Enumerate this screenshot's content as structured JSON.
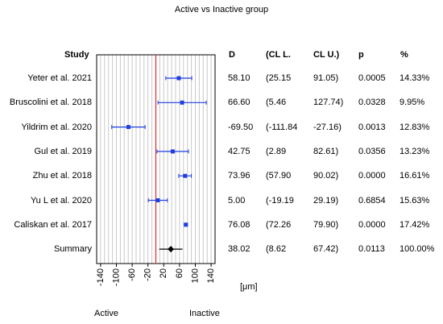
{
  "title": "Active vs Inactive group",
  "headers": {
    "study": "Study",
    "d": "D",
    "cll": "(CL L.",
    "clu": "CL U.)",
    "p": "p",
    "pct": "%"
  },
  "rows": [
    {
      "study": "Yeter et al. 2021",
      "d": "58.10",
      "cll": "(25.15",
      "clu": "91.05)",
      "p": "0.0005",
      "pct": "14.33%"
    },
    {
      "study": "Bruscolini et al. 2018",
      "d": "66.60",
      "cll": "(5.46",
      "clu": "127.74)",
      "p": "0.0328",
      "pct": "9.95%"
    },
    {
      "study": "Yildrim et al. 2020",
      "d": "-69.50",
      "cll": "(-111.84",
      "clu": "-27.16)",
      "p": "0.0013",
      "pct": "12.83%"
    },
    {
      "study": "Gul et al. 2019",
      "d": "42.75",
      "cll": "(2.89",
      "clu": "82.61)",
      "p": "0.0356",
      "pct": "13.23%"
    },
    {
      "study": "Zhu et al. 2018",
      "d": "73.96",
      "cll": "(57.90",
      "clu": "90.02)",
      "p": "0.0000",
      "pct": "16.61%"
    },
    {
      "study": "Yu L et al. 2020",
      "d": "5.00",
      "cll": "(-19.19",
      "clu": "29.19)",
      "p": "0.6854",
      "pct": "15.63%"
    },
    {
      "study": "Caliskan et al. 2017",
      "d": "76.08",
      "cll": "(72.26",
      "clu": "79.90)",
      "p": "0.0000",
      "pct": "17.42%"
    },
    {
      "study": "Summary",
      "d": "38.02",
      "cll": "(8.62",
      "clu": "67.42)",
      "p": "0.0113",
      "pct": "100.00%"
    }
  ],
  "unit": "[μm]",
  "footer": {
    "left": "Active",
    "right": "Inactive"
  },
  "chart_data": {
    "type": "scatter",
    "subtype": "forest-plot",
    "title": "Active vs Inactive group",
    "xlabel": "[μm]",
    "xlim": [
      -150,
      150
    ],
    "xticks": [
      -140,
      -100,
      -60,
      -20,
      20,
      60,
      100,
      140
    ],
    "grid": true,
    "reference_line": {
      "x": 0,
      "color": "#e8262a"
    },
    "colors": {
      "study": "#1f3fe0",
      "summary": "#000000"
    },
    "series": [
      {
        "name": "Yeter et al. 2021",
        "value": 58.1,
        "ci": [
          25.15,
          91.05
        ],
        "weight": 14.33
      },
      {
        "name": "Bruscolini et al. 2018",
        "value": 66.6,
        "ci": [
          5.46,
          127.74
        ],
        "weight": 9.95
      },
      {
        "name": "Yildrim et al. 2020",
        "value": -69.5,
        "ci": [
          -111.84,
          -27.16
        ],
        "weight": 12.83
      },
      {
        "name": "Gul et al. 2019",
        "value": 42.75,
        "ci": [
          2.89,
          82.61
        ],
        "weight": 13.23
      },
      {
        "name": "Zhu et al. 2018",
        "value": 73.96,
        "ci": [
          57.9,
          90.02
        ],
        "weight": 16.61
      },
      {
        "name": "Yu L et al. 2020",
        "value": 5.0,
        "ci": [
          -19.19,
          29.19
        ],
        "weight": 15.63
      },
      {
        "name": "Caliskan et al. 2017",
        "value": 76.08,
        "ci": [
          72.26,
          79.9
        ],
        "weight": 17.42
      },
      {
        "name": "Summary",
        "value": 38.02,
        "ci": [
          8.62,
          67.42
        ],
        "weight": 100.0,
        "summary": true
      }
    ]
  }
}
